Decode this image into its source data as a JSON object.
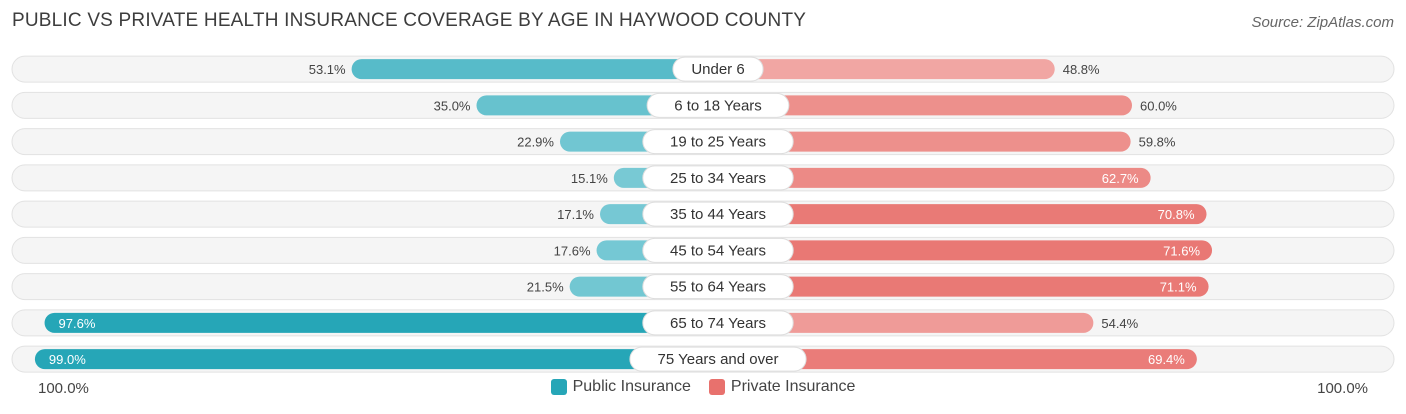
{
  "title": "PUBLIC VS PRIVATE HEALTH INSURANCE COVERAGE BY AGE IN HAYWOOD COUNTY",
  "source": "Source: ZipAtlas.com",
  "axis": {
    "left_label": "100.0%",
    "right_label": "100.0%"
  },
  "legend": {
    "public_label": "Public Insurance",
    "private_label": "Private Insurance"
  },
  "colors": {
    "public_dark": "#26a6b7",
    "public_light": "#7ccbd6",
    "private_dark": "#e8716d",
    "private_light": "#f2aeab",
    "track": "#ececec"
  },
  "chart_data": {
    "type": "bar",
    "orientation": "horizontal-diverging",
    "categories": [
      "Under 6",
      "6 to 18 Years",
      "19 to 25 Years",
      "25 to 34 Years",
      "35 to 44 Years",
      "45 to 54 Years",
      "55 to 64 Years",
      "65 to 74 Years",
      "75 Years and over"
    ],
    "series": [
      {
        "name": "Public Insurance",
        "values": [
          53.1,
          35.0,
          22.9,
          15.1,
          17.1,
          17.6,
          21.5,
          97.6,
          99.0
        ],
        "labels": [
          "53.1%",
          "35.0%",
          "22.9%",
          "15.1%",
          "17.1%",
          "17.6%",
          "21.5%",
          "97.6%",
          "99.0%"
        ]
      },
      {
        "name": "Private Insurance",
        "values": [
          48.8,
          60.0,
          59.8,
          62.7,
          70.8,
          71.6,
          71.1,
          54.4,
          69.4
        ],
        "labels": [
          "48.8%",
          "60.0%",
          "59.8%",
          "62.7%",
          "70.8%",
          "71.6%",
          "71.1%",
          "54.4%",
          "69.4%"
        ]
      }
    ],
    "xlim": [
      -100,
      100
    ]
  }
}
